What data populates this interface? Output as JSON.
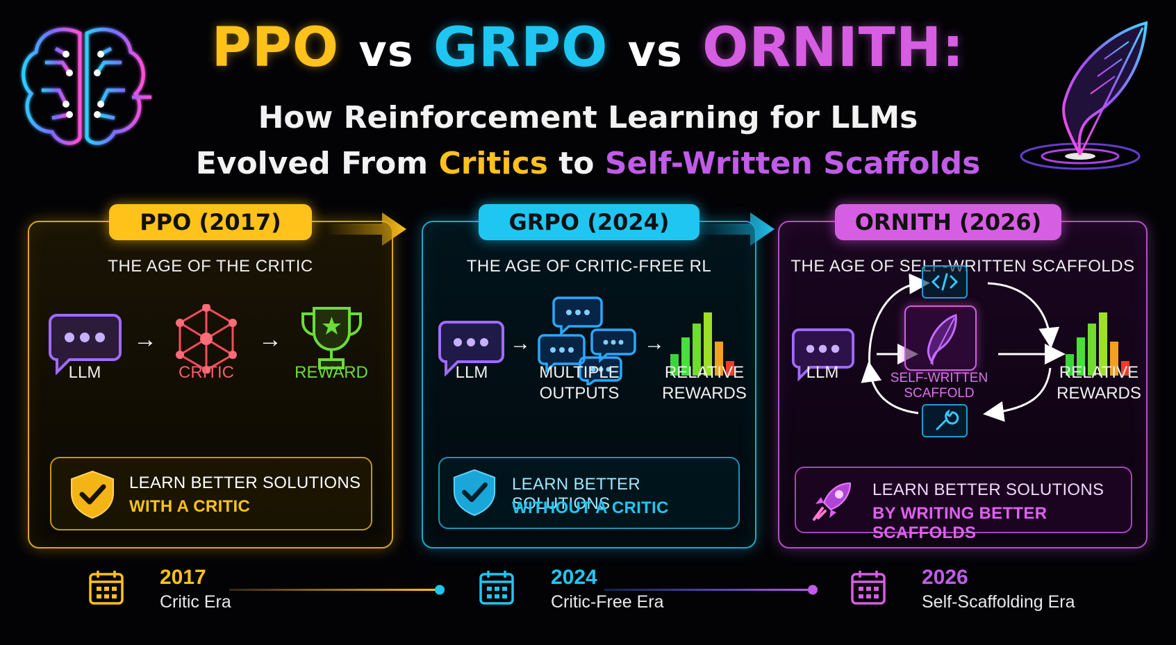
{
  "title": {
    "ppo": "PPO",
    "vs1": "vs",
    "grpo": "GRPO",
    "vs2": "vs",
    "ornith": "ORNITH:",
    "subtitle_line1": "How Reinforcement Learning for LLMs",
    "subtitle_line2_a": "Evolved From ",
    "subtitle_line2_b": "Critics",
    "subtitle_line2_c": " to ",
    "subtitle_line2_d": "Self-Written Scaffolds"
  },
  "panels": [
    {
      "badge": "PPO (2017)",
      "heading": "THE AGE OF THE CRITIC",
      "labels": [
        "LLM",
        "CRITIC",
        "REWARD"
      ],
      "footer_line1": "LEARN BETTER SOLUTIONS",
      "footer_line2": "WITH A CRITIC"
    },
    {
      "badge": "GRPO (2024)",
      "heading": "THE AGE OF CRITIC-FREE RL",
      "labels": [
        "LLM",
        "MULTIPLE",
        "OUTPUTS",
        "RELATIVE",
        "REWARDS"
      ],
      "footer_line1": "LEARN BETTER SOLUTIONS",
      "footer_line2": "WITHOUT A CRITIC"
    },
    {
      "badge": "ORNITH (2026)",
      "heading": "THE AGE OF SELF-WRITTEN SCAFFOLDS",
      "labels": [
        "LLM",
        "SELF-WRITTEN",
        "SCAFFOLD",
        "RELATIVE",
        "REWARDS"
      ],
      "footer_line1": "LEARN BETTER SOLUTIONS",
      "footer_line2": "BY WRITING BETTER SCAFFOLDS"
    }
  ],
  "timeline": [
    {
      "year": "2017",
      "era": "Critic Era"
    },
    {
      "year": "2024",
      "era": "Critic-Free Era"
    },
    {
      "year": "2026",
      "era": "Self-Scaffolding Era"
    }
  ],
  "colors": {
    "ppo": "#ffc21a",
    "grpo": "#20c6f2",
    "ornith": "#d65ee2",
    "critic": "#ff4b5c",
    "reward": "#6bdc3a",
    "background": "#030306"
  },
  "icons": [
    "brain-icon",
    "feather-quill-icon",
    "chat-bubble-icon",
    "network-critic-icon",
    "trophy-icon",
    "bar-chart-icon",
    "shield-check-icon",
    "code-icon",
    "wrench-icon",
    "rocket-icon",
    "calendar-icon",
    "arrow-right-icon"
  ]
}
